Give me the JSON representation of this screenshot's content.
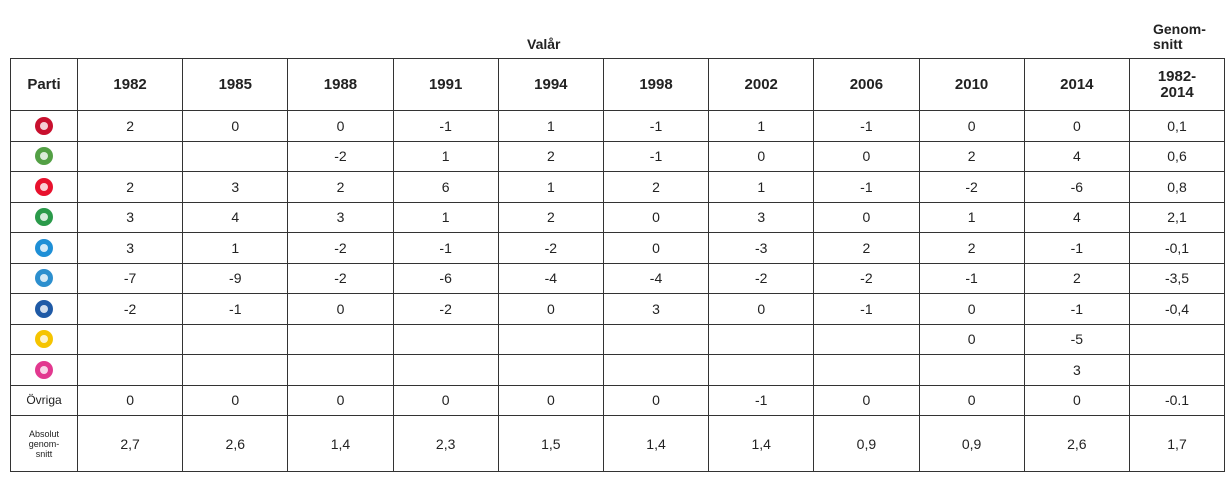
{
  "heading": {
    "group": "Valår",
    "average": "Genom-\nsnitt"
  },
  "table": {
    "columns": [
      "Parti",
      "1982",
      "1985",
      "1988",
      "1991",
      "1994",
      "1998",
      "2002",
      "2006",
      "2010",
      "2014",
      "1982-\n2014"
    ],
    "rows": [
      {
        "color": "#c8102e",
        "cells": [
          2,
          0,
          0,
          -1,
          1,
          -1,
          1,
          -1,
          0,
          0,
          "0,1"
        ]
      },
      {
        "color": "#53a045",
        "cells": [
          null,
          null,
          -2,
          1,
          2,
          -1,
          0,
          0,
          2,
          4,
          "0,6"
        ]
      },
      {
        "color": "#e8112d",
        "cells": [
          2,
          3,
          2,
          6,
          1,
          2,
          1,
          -1,
          -2,
          -6,
          "0,8"
        ]
      },
      {
        "color": "#2a9a4a",
        "cells": [
          3,
          4,
          3,
          1,
          2,
          0,
          3,
          0,
          1,
          4,
          "2,1"
        ]
      },
      {
        "color": "#1e8fd6",
        "cells": [
          3,
          1,
          -2,
          -1,
          -2,
          0,
          -3,
          2,
          2,
          -1,
          "-0,1"
        ]
      },
      {
        "color": "#2c8fce",
        "cells": [
          -7,
          -9,
          -2,
          -6,
          -4,
          -4,
          -2,
          -2,
          -1,
          2,
          "-3,5"
        ]
      },
      {
        "color": "#1f5aa6",
        "cells": [
          -2,
          -1,
          0,
          -2,
          0,
          3,
          0,
          -1,
          0,
          -1,
          "-0,4"
        ]
      },
      {
        "color": "#f5c400",
        "cells": [
          null,
          null,
          null,
          null,
          null,
          null,
          null,
          null,
          0,
          -5,
          null
        ]
      },
      {
        "color": "#e2388f",
        "cells": [
          null,
          null,
          null,
          null,
          null,
          null,
          null,
          null,
          null,
          3,
          null
        ]
      },
      {
        "label": "Övriga",
        "cells": [
          0,
          0,
          0,
          0,
          0,
          0,
          -1,
          0,
          0,
          0,
          "-0.1"
        ]
      },
      {
        "label": "Absolut\ngenom-\nsnitt",
        "cells": [
          "2,7",
          "2,6",
          "1,4",
          "2,3",
          "1,5",
          "1,4",
          "1,4",
          "0,9",
          "0,9",
          "2,6",
          "1,7"
        ]
      }
    ]
  }
}
